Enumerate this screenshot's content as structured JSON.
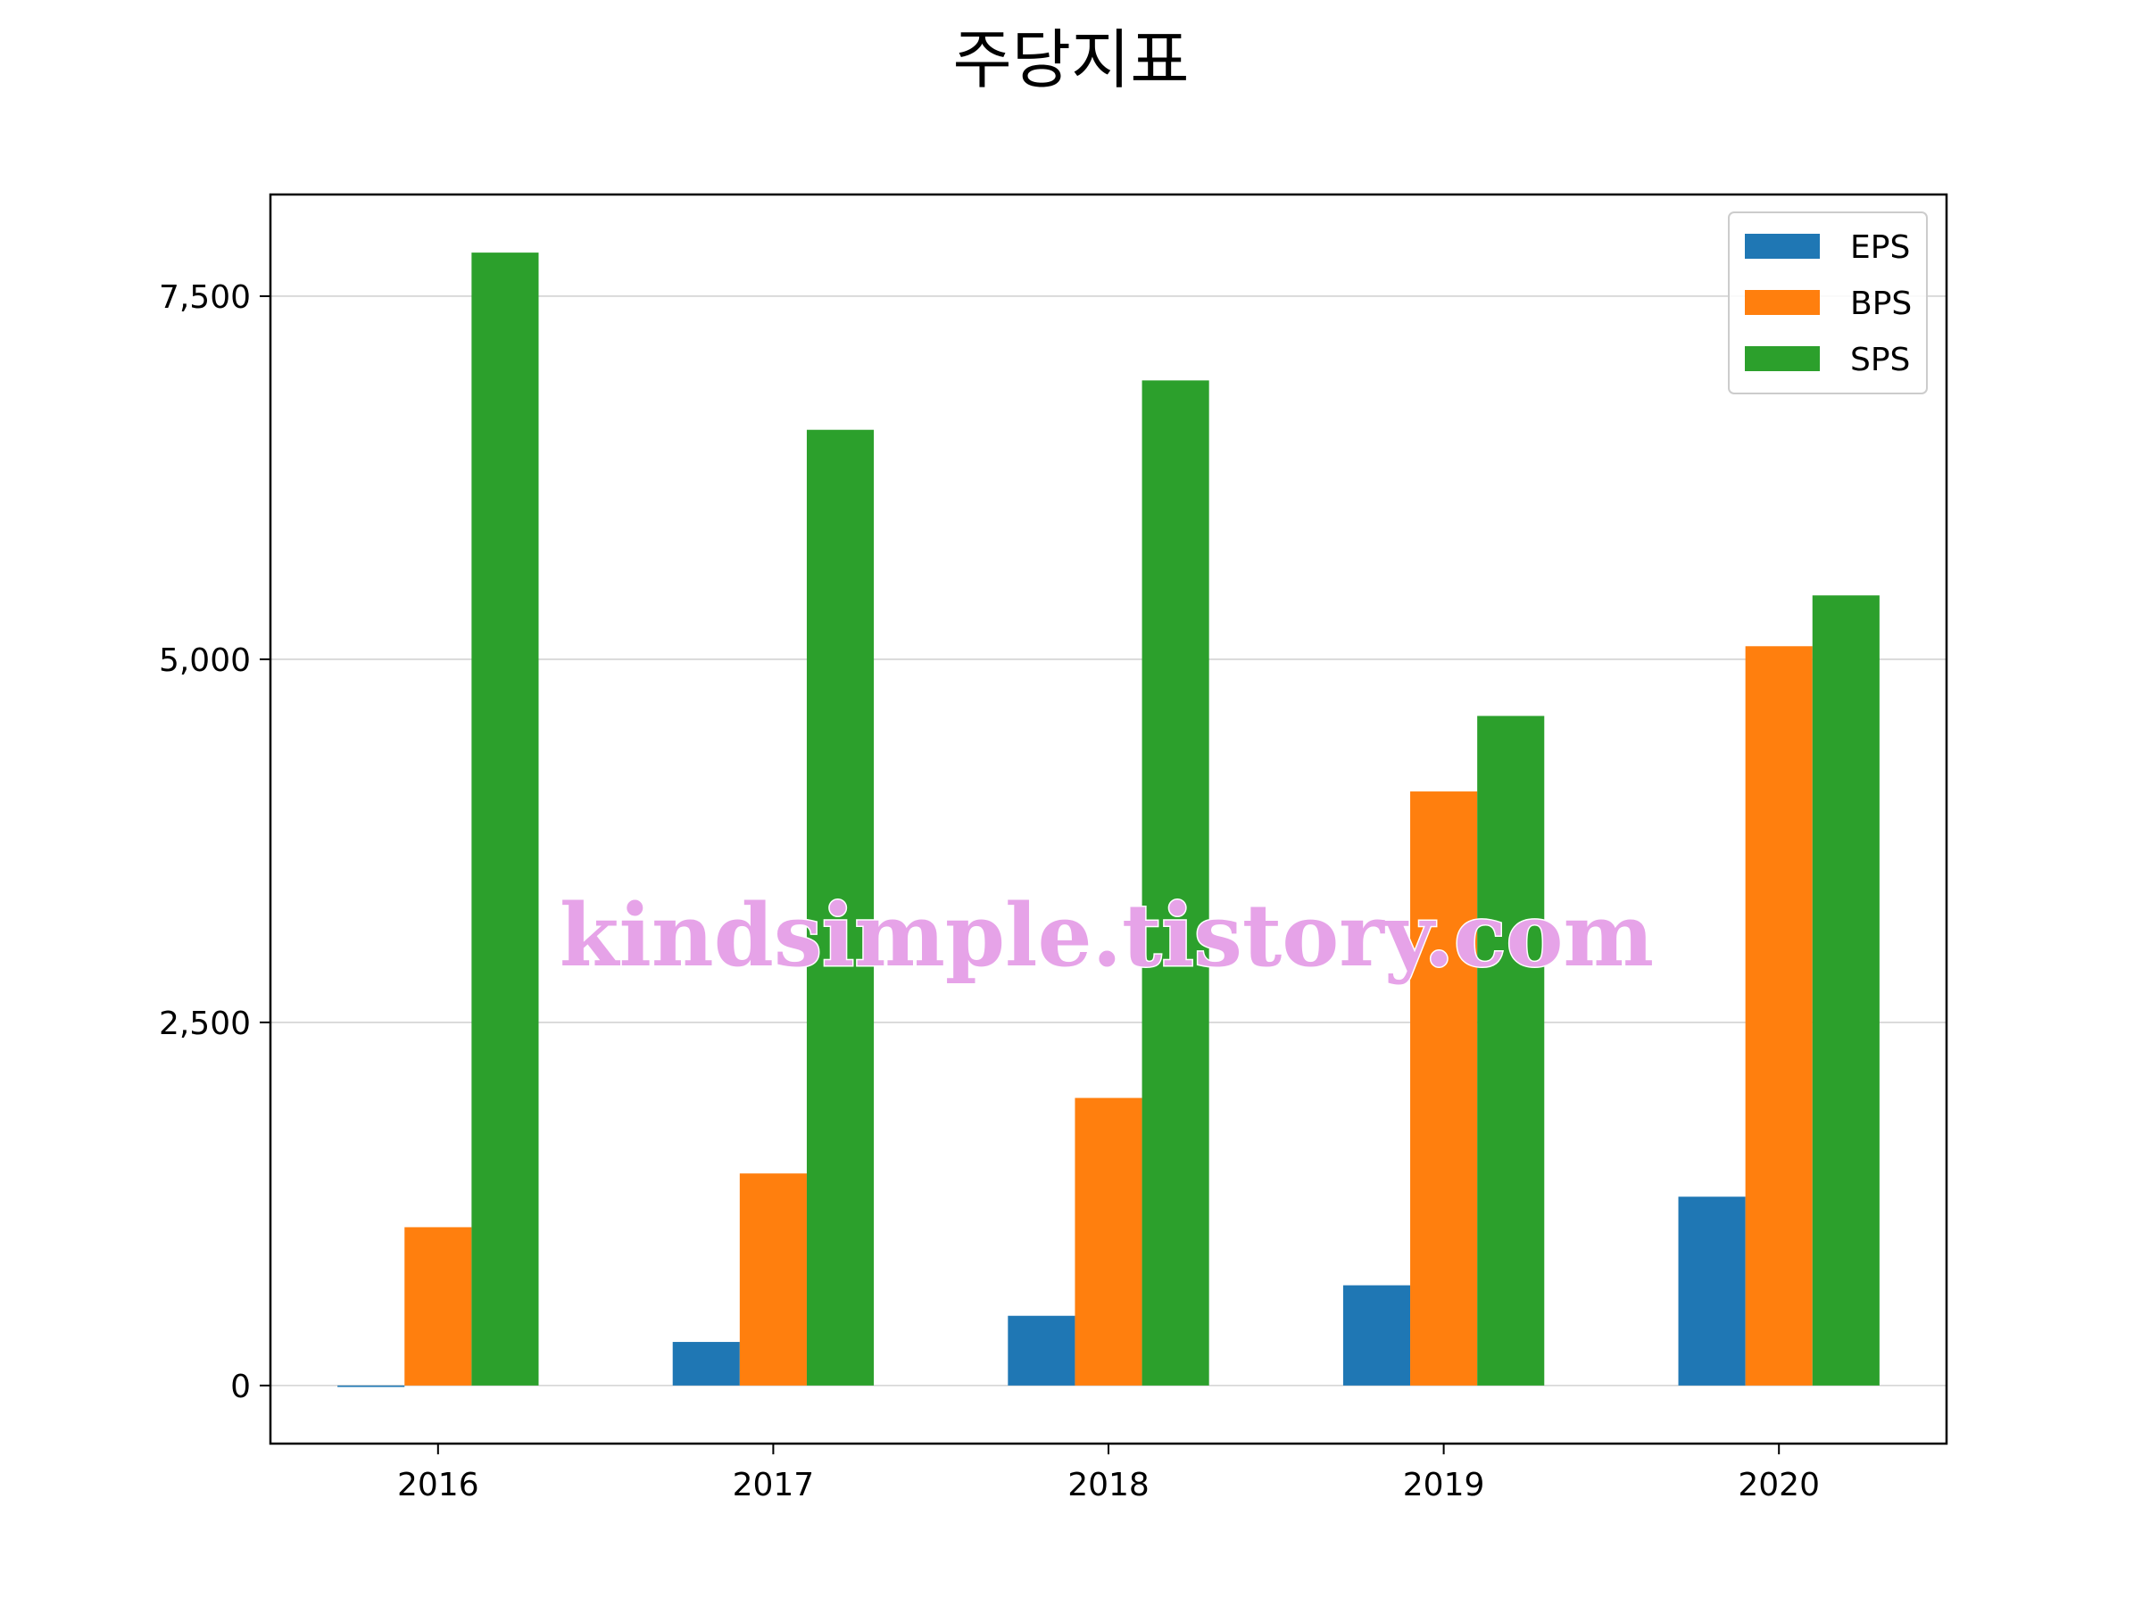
{
  "chart_data": {
    "type": "bar",
    "title": "주당지표",
    "xlabel": "",
    "ylabel": "",
    "categories": [
      "2016",
      "2017",
      "2018",
      "2019",
      "2020"
    ],
    "series": [
      {
        "name": "EPS",
        "color": "#1f77b4",
        "values": [
          -10,
          300,
          480,
          690,
          1300
        ]
      },
      {
        "name": "BPS",
        "color": "#ff7f0e",
        "values": [
          1090,
          1460,
          1980,
          4090,
          5090
        ]
      },
      {
        "name": "SPS",
        "color": "#2ca02c",
        "values": [
          7800,
          6580,
          6920,
          4610,
          5440
        ]
      }
    ],
    "ylim": [
      -400,
      8200
    ],
    "yticks": [
      0,
      2500,
      5000,
      7500
    ],
    "ytick_labels": [
      "0",
      "2,500",
      "5,000",
      "7,500"
    ],
    "grid": "y",
    "legend_position": "top-right",
    "watermark": "kindsimple.tistory.com"
  }
}
